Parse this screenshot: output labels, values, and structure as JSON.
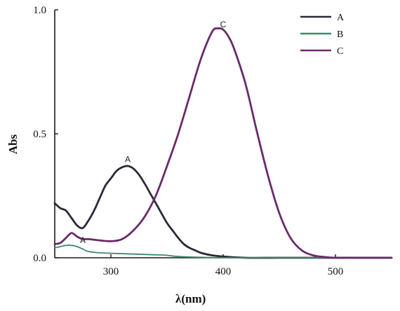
{
  "chart_data": {
    "type": "line",
    "xlabel": "λ(nm)",
    "ylabel": "Abs",
    "xlim": [
      250,
      550
    ],
    "ylim": [
      0,
      1.0
    ],
    "x_ticks": [
      300,
      400,
      500
    ],
    "x_tick_labels": [
      "300",
      "400",
      "500"
    ],
    "y_ticks": [
      0,
      0.5,
      1.0
    ],
    "y_tick_labels": [
      "0.0",
      "0.5",
      "1.0"
    ],
    "grid": false,
    "legend_position": "top-right",
    "series": [
      {
        "name": "A",
        "color": "#2a2a3a",
        "x": [
          250,
          255,
          260,
          265,
          270,
          275,
          280,
          285,
          290,
          295,
          300,
          305,
          310,
          315,
          320,
          325,
          330,
          335,
          340,
          345,
          350,
          355,
          360,
          365,
          370,
          375,
          380,
          390,
          400,
          420,
          450,
          500,
          550
        ],
        "y": [
          0.22,
          0.2,
          0.19,
          0.16,
          0.13,
          0.12,
          0.15,
          0.19,
          0.24,
          0.29,
          0.32,
          0.35,
          0.365,
          0.37,
          0.36,
          0.335,
          0.3,
          0.26,
          0.22,
          0.18,
          0.14,
          0.11,
          0.08,
          0.055,
          0.04,
          0.03,
          0.02,
          0.01,
          0.005,
          0.0,
          0.0,
          0.0,
          0.0
        ]
      },
      {
        "name": "B",
        "color": "#3d8a6b",
        "x": [
          250,
          255,
          260,
          265,
          270,
          275,
          280,
          290,
          300,
          320,
          340,
          350,
          360,
          380,
          400,
          450,
          500,
          550
        ],
        "y": [
          0.04,
          0.045,
          0.05,
          0.05,
          0.045,
          0.035,
          0.025,
          0.02,
          0.018,
          0.015,
          0.012,
          0.01,
          0.005,
          0.002,
          0.0,
          0.0,
          0.0,
          0.0
        ]
      },
      {
        "name": "C",
        "color": "#6a2a6a",
        "x": [
          250,
          255,
          260,
          265,
          270,
          275,
          280,
          290,
          300,
          310,
          320,
          330,
          340,
          350,
          360,
          370,
          380,
          390,
          395,
          400,
          405,
          410,
          420,
          430,
          440,
          450,
          460,
          470,
          480,
          490,
          500,
          520,
          550
        ],
        "y": [
          0.055,
          0.06,
          0.08,
          0.1,
          0.085,
          0.075,
          0.075,
          0.07,
          0.067,
          0.075,
          0.11,
          0.165,
          0.25,
          0.37,
          0.5,
          0.65,
          0.8,
          0.91,
          0.925,
          0.92,
          0.89,
          0.84,
          0.7,
          0.51,
          0.33,
          0.18,
          0.08,
          0.03,
          0.01,
          0.003,
          0.0,
          0.0,
          0.0
        ]
      }
    ],
    "annotations": [
      {
        "text": "A",
        "x": 315,
        "y": 0.385
      },
      {
        "text": "C",
        "x": 400,
        "y": 0.93
      },
      {
        "text": "A",
        "x": 275,
        "y": 0.06
      }
    ]
  }
}
